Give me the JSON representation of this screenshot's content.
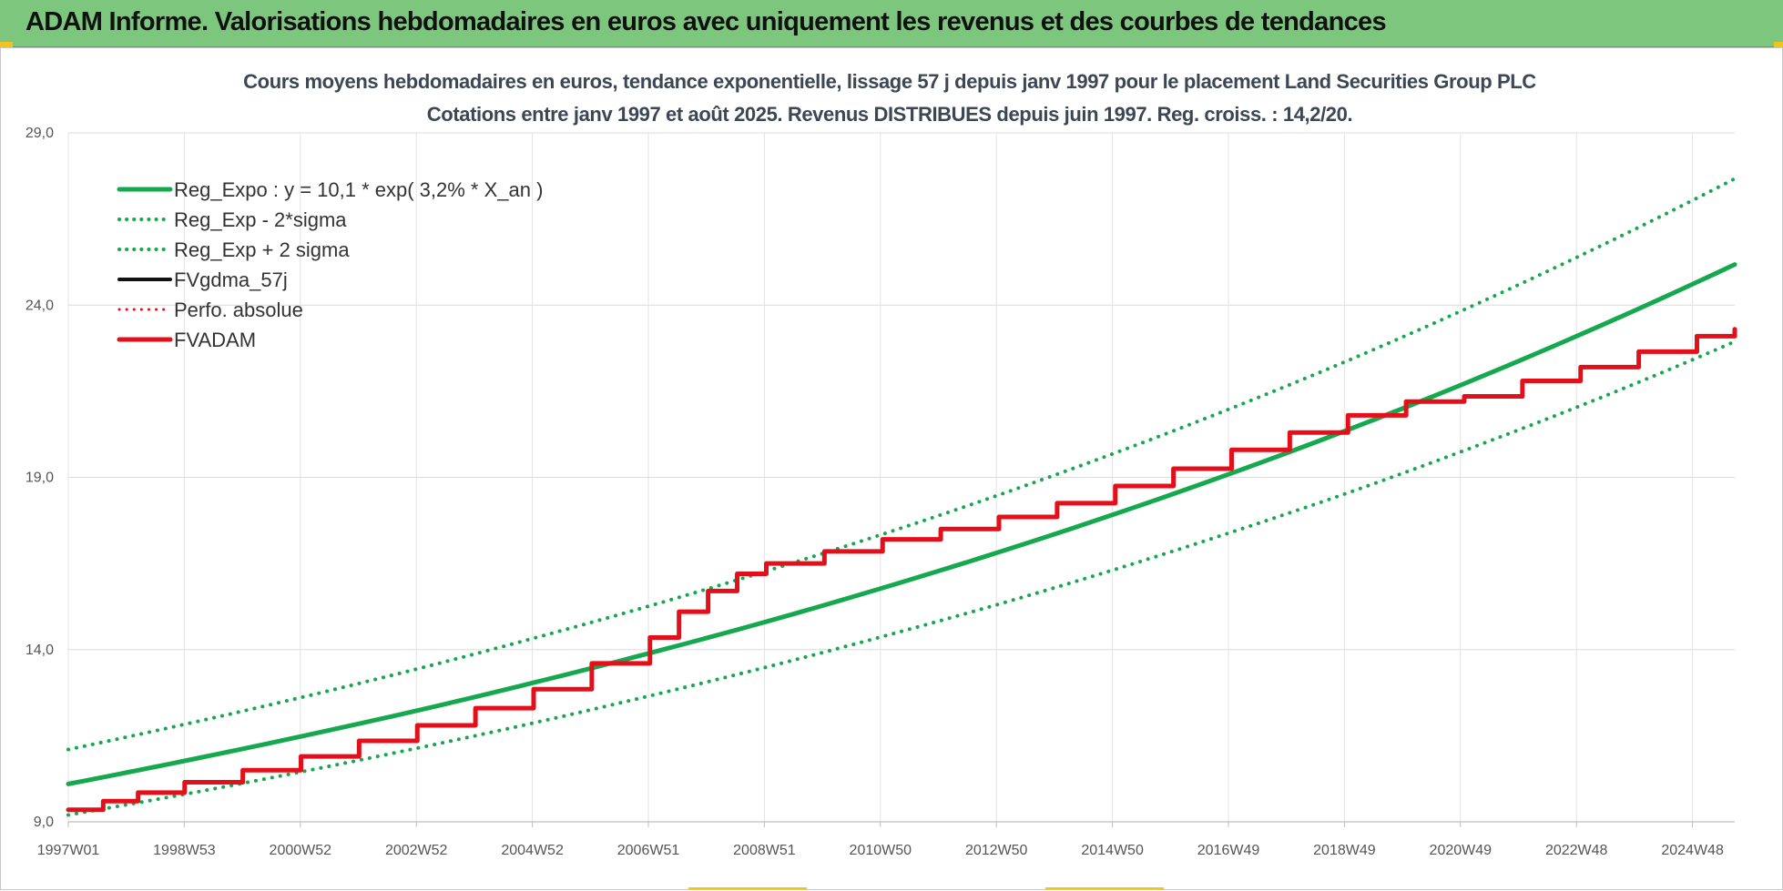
{
  "header": {
    "title": "ADAM Informe. Valorisations hebdomadaires en euros avec uniquement les revenus et des courbes de tendances",
    "background": "#7cc77d",
    "corner_accent": "#f2c417"
  },
  "chart_data": {
    "type": "line",
    "title_lines": [
      "Cours moyens hebdomadaires en euros, tendance exponentielle, lissage 57 j depuis janv 1997 pour le placement Land Securities  Group PLC",
      "Cotations entre janv 1997 et août 2025.  Revenus DISTRIBUES depuis juin 1997.  Reg. croiss. : 14,2/20."
    ],
    "x_tick_labels": [
      "1997W01",
      "1998W53",
      "2000W52",
      "2002W52",
      "2004W52",
      "2006W51",
      "2008W51",
      "2010W50",
      "2012W50",
      "2014W50",
      "2016W49",
      "2018W49",
      "2020W49",
      "2022W48",
      "2024W48"
    ],
    "y_tick_labels": [
      "9,0",
      "14,0",
      "19,0",
      "24,0",
      "29,0"
    ],
    "y_ticks": [
      9,
      14,
      19,
      24,
      29
    ],
    "xlim": [
      1997.0,
      2025.65
    ],
    "ylim": [
      9,
      29
    ],
    "grid": true,
    "legend_position": "top-left",
    "series": [
      {
        "name": "Reg_Expo : y = 10,1 * exp( 3,2% *  X_an )",
        "color": "#16a84e",
        "style": "solid",
        "x": [
          1997,
          1999,
          2001,
          2003,
          2005,
          2007,
          2009,
          2011,
          2013,
          2015,
          2017,
          2019,
          2021,
          2023,
          2025.65
        ],
        "y": [
          10.1,
          10.77,
          11.48,
          12.23,
          13.04,
          13.9,
          14.81,
          15.79,
          16.83,
          17.94,
          19.12,
          20.38,
          21.72,
          23.15,
          25.18
        ]
      },
      {
        "name": "Reg_Exp - 2*sigma",
        "color": "#16a84e",
        "style": "dotted",
        "x": [
          1997,
          1999,
          2001,
          2003,
          2005,
          2007,
          2009,
          2011,
          2013,
          2015,
          2017,
          2019,
          2021,
          2023,
          2025.65
        ],
        "y": [
          9.2,
          9.8,
          10.45,
          11.14,
          11.87,
          12.66,
          13.49,
          14.38,
          15.32,
          16.33,
          17.41,
          18.55,
          19.78,
          21.08,
          22.94
        ]
      },
      {
        "name": "Reg_Exp + 2 sigma",
        "color": "#16a84e",
        "style": "dotted",
        "x": [
          1997,
          1999,
          2001,
          2003,
          2005,
          2007,
          2009,
          2011,
          2013,
          2015,
          2017,
          2019,
          2021,
          2023,
          2025.65
        ],
        "y": [
          11.1,
          11.83,
          12.61,
          13.44,
          14.33,
          15.27,
          16.28,
          17.35,
          18.49,
          19.71,
          21.01,
          22.39,
          23.87,
          25.44,
          27.67
        ]
      },
      {
        "name": "FVgdma_57j",
        "color": "#111111",
        "style": "solid",
        "x": [
          1997.0,
          1997.6,
          1998.2,
          1999.0,
          2000.0,
          2001.0,
          2002.0,
          2003.0,
          2004.0,
          2005.0,
          2006.0,
          2007.0,
          2007.5,
          2008.0,
          2008.5,
          2009.0,
          2010.0,
          2011.0,
          2012.0,
          2013.0,
          2014.0,
          2015.0,
          2016.0,
          2017.0,
          2018.0,
          2019.0,
          2020.0,
          2021.0,
          2022.0,
          2023.0,
          2024.0,
          2025.0,
          2025.65
        ],
        "y": [
          9.35,
          9.6,
          9.85,
          10.15,
          10.5,
          10.9,
          11.35,
          11.8,
          12.3,
          12.85,
          13.6,
          14.35,
          15.1,
          15.7,
          16.2,
          16.5,
          16.85,
          17.2,
          17.5,
          17.85,
          18.25,
          18.75,
          19.25,
          19.8,
          20.3,
          20.8,
          21.2,
          21.35,
          21.8,
          22.2,
          22.65,
          23.1,
          23.3
        ]
      },
      {
        "name": "Perfo. absolue",
        "color": "#e3101b",
        "style": "dotted",
        "x": [
          1997.0,
          1997.6,
          1998.2,
          1999.0,
          2000.0,
          2001.0,
          2002.0,
          2003.0,
          2004.0,
          2005.0,
          2006.0,
          2007.0,
          2007.5,
          2008.0,
          2008.5,
          2009.0,
          2010.0,
          2011.0,
          2012.0,
          2013.0,
          2014.0,
          2015.0,
          2016.0,
          2017.0,
          2018.0,
          2019.0,
          2020.0,
          2021.0,
          2022.0,
          2023.0,
          2024.0,
          2025.0,
          2025.65
        ],
        "y": [
          9.35,
          9.6,
          9.85,
          10.15,
          10.5,
          10.9,
          11.35,
          11.8,
          12.3,
          12.85,
          13.6,
          14.35,
          15.1,
          15.7,
          16.2,
          16.5,
          16.85,
          17.2,
          17.5,
          17.85,
          18.25,
          18.75,
          19.25,
          19.8,
          20.3,
          20.8,
          21.2,
          21.35,
          21.8,
          22.2,
          22.65,
          23.1,
          23.3
        ]
      },
      {
        "name": "FVADAM",
        "color": "#e3101b",
        "style": "solid",
        "x": [
          1997.0,
          1997.6,
          1998.2,
          1999.0,
          2000.0,
          2001.0,
          2002.0,
          2003.0,
          2004.0,
          2005.0,
          2006.0,
          2007.0,
          2007.5,
          2008.0,
          2008.5,
          2009.0,
          2010.0,
          2011.0,
          2012.0,
          2013.0,
          2014.0,
          2015.0,
          2016.0,
          2017.0,
          2018.0,
          2019.0,
          2020.0,
          2021.0,
          2022.0,
          2023.0,
          2024.0,
          2025.0,
          2025.65
        ],
        "y": [
          9.35,
          9.6,
          9.85,
          10.15,
          10.5,
          10.9,
          11.35,
          11.8,
          12.3,
          12.85,
          13.6,
          14.35,
          15.1,
          15.7,
          16.2,
          16.5,
          16.85,
          17.2,
          17.5,
          17.85,
          18.25,
          18.75,
          19.25,
          19.8,
          20.3,
          20.8,
          21.2,
          21.35,
          21.8,
          22.2,
          22.65,
          23.1,
          23.3
        ]
      }
    ]
  }
}
